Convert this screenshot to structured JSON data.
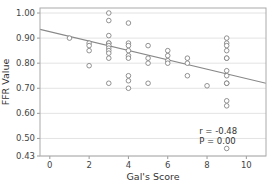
{
  "chart_data": {
    "type": "scatter",
    "title": "",
    "xlabel": "Gal's Score",
    "ylabel": "FFR Value",
    "xlim": [
      -0.5,
      11
    ],
    "ylim": [
      0.43,
      1.02
    ],
    "xticks": [
      0,
      2,
      4,
      6,
      8,
      10
    ],
    "yticks": [
      0.43,
      {
        "value": 0.5,
        "label": "0.50"
      },
      {
        "value": 0.6,
        "label": "0.60"
      },
      {
        "value": 0.7,
        "label": "0.70"
      },
      {
        "value": 0.8,
        "label": "0.80"
      },
      {
        "value": 0.9,
        "label": "0.90"
      },
      {
        "value": 1.0,
        "label": "1.00"
      }
    ],
    "grid": true,
    "series": [
      {
        "type": "scatter",
        "color": "#777777",
        "marker": "circle",
        "x": [
          1,
          2,
          2,
          2,
          2,
          3,
          3,
          3,
          3,
          3,
          3,
          3,
          3,
          3,
          3,
          3,
          4,
          4,
          4,
          4,
          4,
          4,
          4,
          4,
          4,
          5,
          5,
          5,
          5,
          6,
          6,
          6,
          6,
          7,
          7,
          7,
          8,
          9,
          9,
          9,
          9,
          9,
          9,
          9,
          9,
          9,
          9,
          9,
          9,
          9
        ],
        "values": [
          0.9,
          0.88,
          0.87,
          0.85,
          0.79,
          1.0,
          0.97,
          0.91,
          0.88,
          0.88,
          0.87,
          0.86,
          0.85,
          0.84,
          0.82,
          0.72,
          0.96,
          0.88,
          0.87,
          0.85,
          0.83,
          0.82,
          0.75,
          0.73,
          0.7,
          0.87,
          0.82,
          0.8,
          0.72,
          0.81,
          0.83,
          0.85,
          0.8,
          0.82,
          0.75,
          0.8,
          0.71,
          0.9,
          0.88,
          0.87,
          0.85,
          0.82,
          0.82,
          0.77,
          0.75,
          0.72,
          0.72,
          0.65,
          0.63,
          0.46
        ]
      },
      {
        "type": "line",
        "color": "#888888",
        "x": [
          -0.5,
          11
        ],
        "values": [
          0.935,
          0.72
        ]
      }
    ],
    "annotations": [
      {
        "text": "r = -0.48\nP = 0.00",
        "x": 7.6,
        "y": 0.475
      }
    ]
  }
}
